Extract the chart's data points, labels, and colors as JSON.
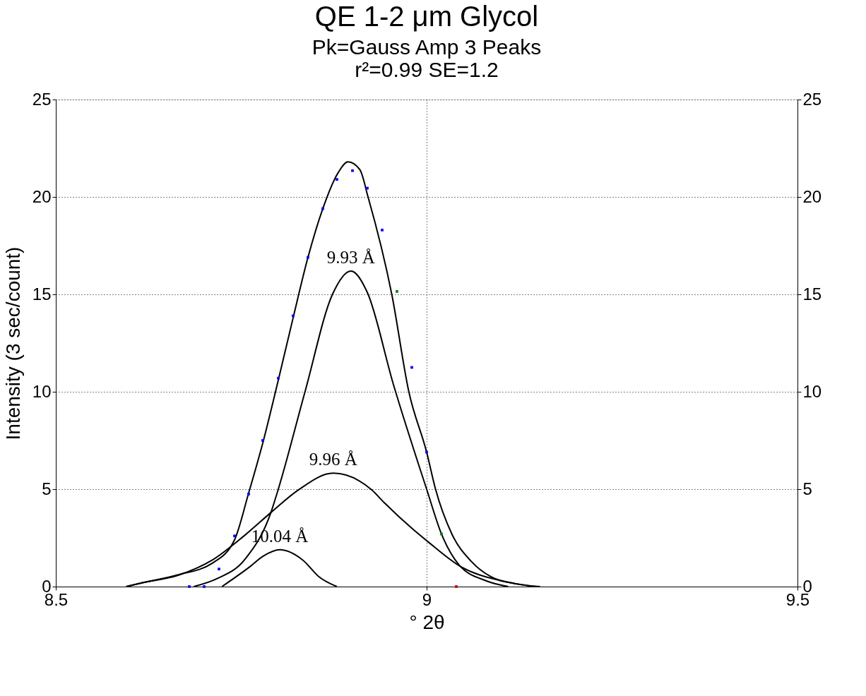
{
  "chart_data": {
    "type": "line",
    "title": "QE 1-2 μm Glycol",
    "subtitle": [
      "Pk=Gauss Amp  3 Peaks",
      "r²=0.99  SE=1.2"
    ],
    "xlabel": "° 2θ",
    "ylabel": "Intensity (3 sec/count)",
    "xlim": [
      8.5,
      9.5
    ],
    "xticks": [
      {
        "value": 8.5,
        "label": "8.5"
      },
      {
        "value": 9,
        "label": "9"
      },
      {
        "value": 9.5,
        "label": "9.5"
      }
    ],
    "ylim": [
      0,
      25
    ],
    "yticks": [
      0,
      5,
      10,
      15,
      20,
      25
    ],
    "y2lim": [
      0,
      25
    ],
    "y2ticks": [
      0,
      5,
      10,
      15,
      20,
      25
    ],
    "grid": true,
    "legend": false,
    "line_style": "solid",
    "series": [
      {
        "type": "line",
        "color": "#000000",
        "x": [
          8.595,
          8.617,
          8.664,
          8.711,
          8.741,
          8.76,
          8.78,
          8.8,
          8.82,
          8.84,
          8.86,
          8.88,
          8.894,
          8.91,
          8.921,
          8.953,
          8.976,
          9.0,
          9.012,
          9.034,
          9.06,
          9.087,
          9.12,
          9.153
        ],
        "values": [
          0,
          0.2,
          0.6,
          1.2,
          2.4,
          4.8,
          7.5,
          10.6,
          13.8,
          16.9,
          19.4,
          21.2,
          21.8,
          21.4,
          20,
          15,
          10,
          6.9,
          5,
          2.7,
          1.3,
          0.5,
          0.15,
          0
        ]
      },
      {
        "type": "line",
        "color": "#000000",
        "x": [
          8.686,
          8.717,
          8.755,
          8.79,
          8.8,
          8.836,
          8.873,
          8.898,
          8.92,
          8.955,
          9.0,
          9.02,
          9.044,
          9.08,
          9.11
        ],
        "values": [
          0,
          0.4,
          1.4,
          3.8,
          5,
          10,
          15,
          16.2,
          15.1,
          10.4,
          5,
          2.7,
          1.1,
          0.3,
          0
        ]
      },
      {
        "type": "line",
        "color": "#000000",
        "x": [
          8.595,
          8.617,
          8.664,
          8.711,
          8.755,
          8.79,
          8.827,
          8.874,
          8.926,
          8.943,
          8.981,
          9.0,
          9.047,
          9.1,
          9.147
        ],
        "values": [
          0,
          0.2,
          0.57,
          1.36,
          2.64,
          3.8,
          4.96,
          5.82,
          4.96,
          4.3,
          2.96,
          2.36,
          1.0,
          0.3,
          0
        ]
      },
      {
        "type": "line",
        "color": "#000000",
        "x": [
          8.724,
          8.761,
          8.78,
          8.802,
          8.833,
          8.855,
          8.879
        ],
        "values": [
          0,
          1.0,
          1.57,
          1.89,
          1.36,
          0.5,
          0
        ]
      },
      {
        "type": "scatter",
        "marker": "square",
        "x": [
          8.68,
          8.7,
          8.72,
          8.741,
          8.76,
          8.779,
          8.8,
          8.82,
          8.84,
          8.86,
          8.879,
          8.9,
          8.92,
          8.94,
          8.96,
          8.98,
          9.0,
          9.02,
          9.04
        ],
        "values": [
          0,
          0,
          0.9,
          2.6,
          4.75,
          7.5,
          10.7,
          13.9,
          16.9,
          19.4,
          20.9,
          21.35,
          20.45,
          18.3,
          15.15,
          11.25,
          6.9,
          2.7,
          0
        ],
        "colors": [
          "#0000ff",
          "#0000ff",
          "#0000ff",
          "#0000ff",
          "#0000ff",
          "#0000ff",
          "#0000ff",
          "#0000ff",
          "#0000ff",
          "#0000ff",
          "#0000ff",
          "#0000ff",
          "#0000ff",
          "#0000ff",
          "#008000",
          "#0000ff",
          "#0000ff",
          "#008000",
          "#c00000"
        ]
      }
    ],
    "annotations": [
      {
        "text": "9.93 Å",
        "x": 8.898,
        "y": 16.2
      },
      {
        "text": "9.96 Å",
        "x": 8.874,
        "y": 5.82
      },
      {
        "text": "10.04 Å",
        "x": 8.802,
        "y": 1.89
      }
    ]
  }
}
